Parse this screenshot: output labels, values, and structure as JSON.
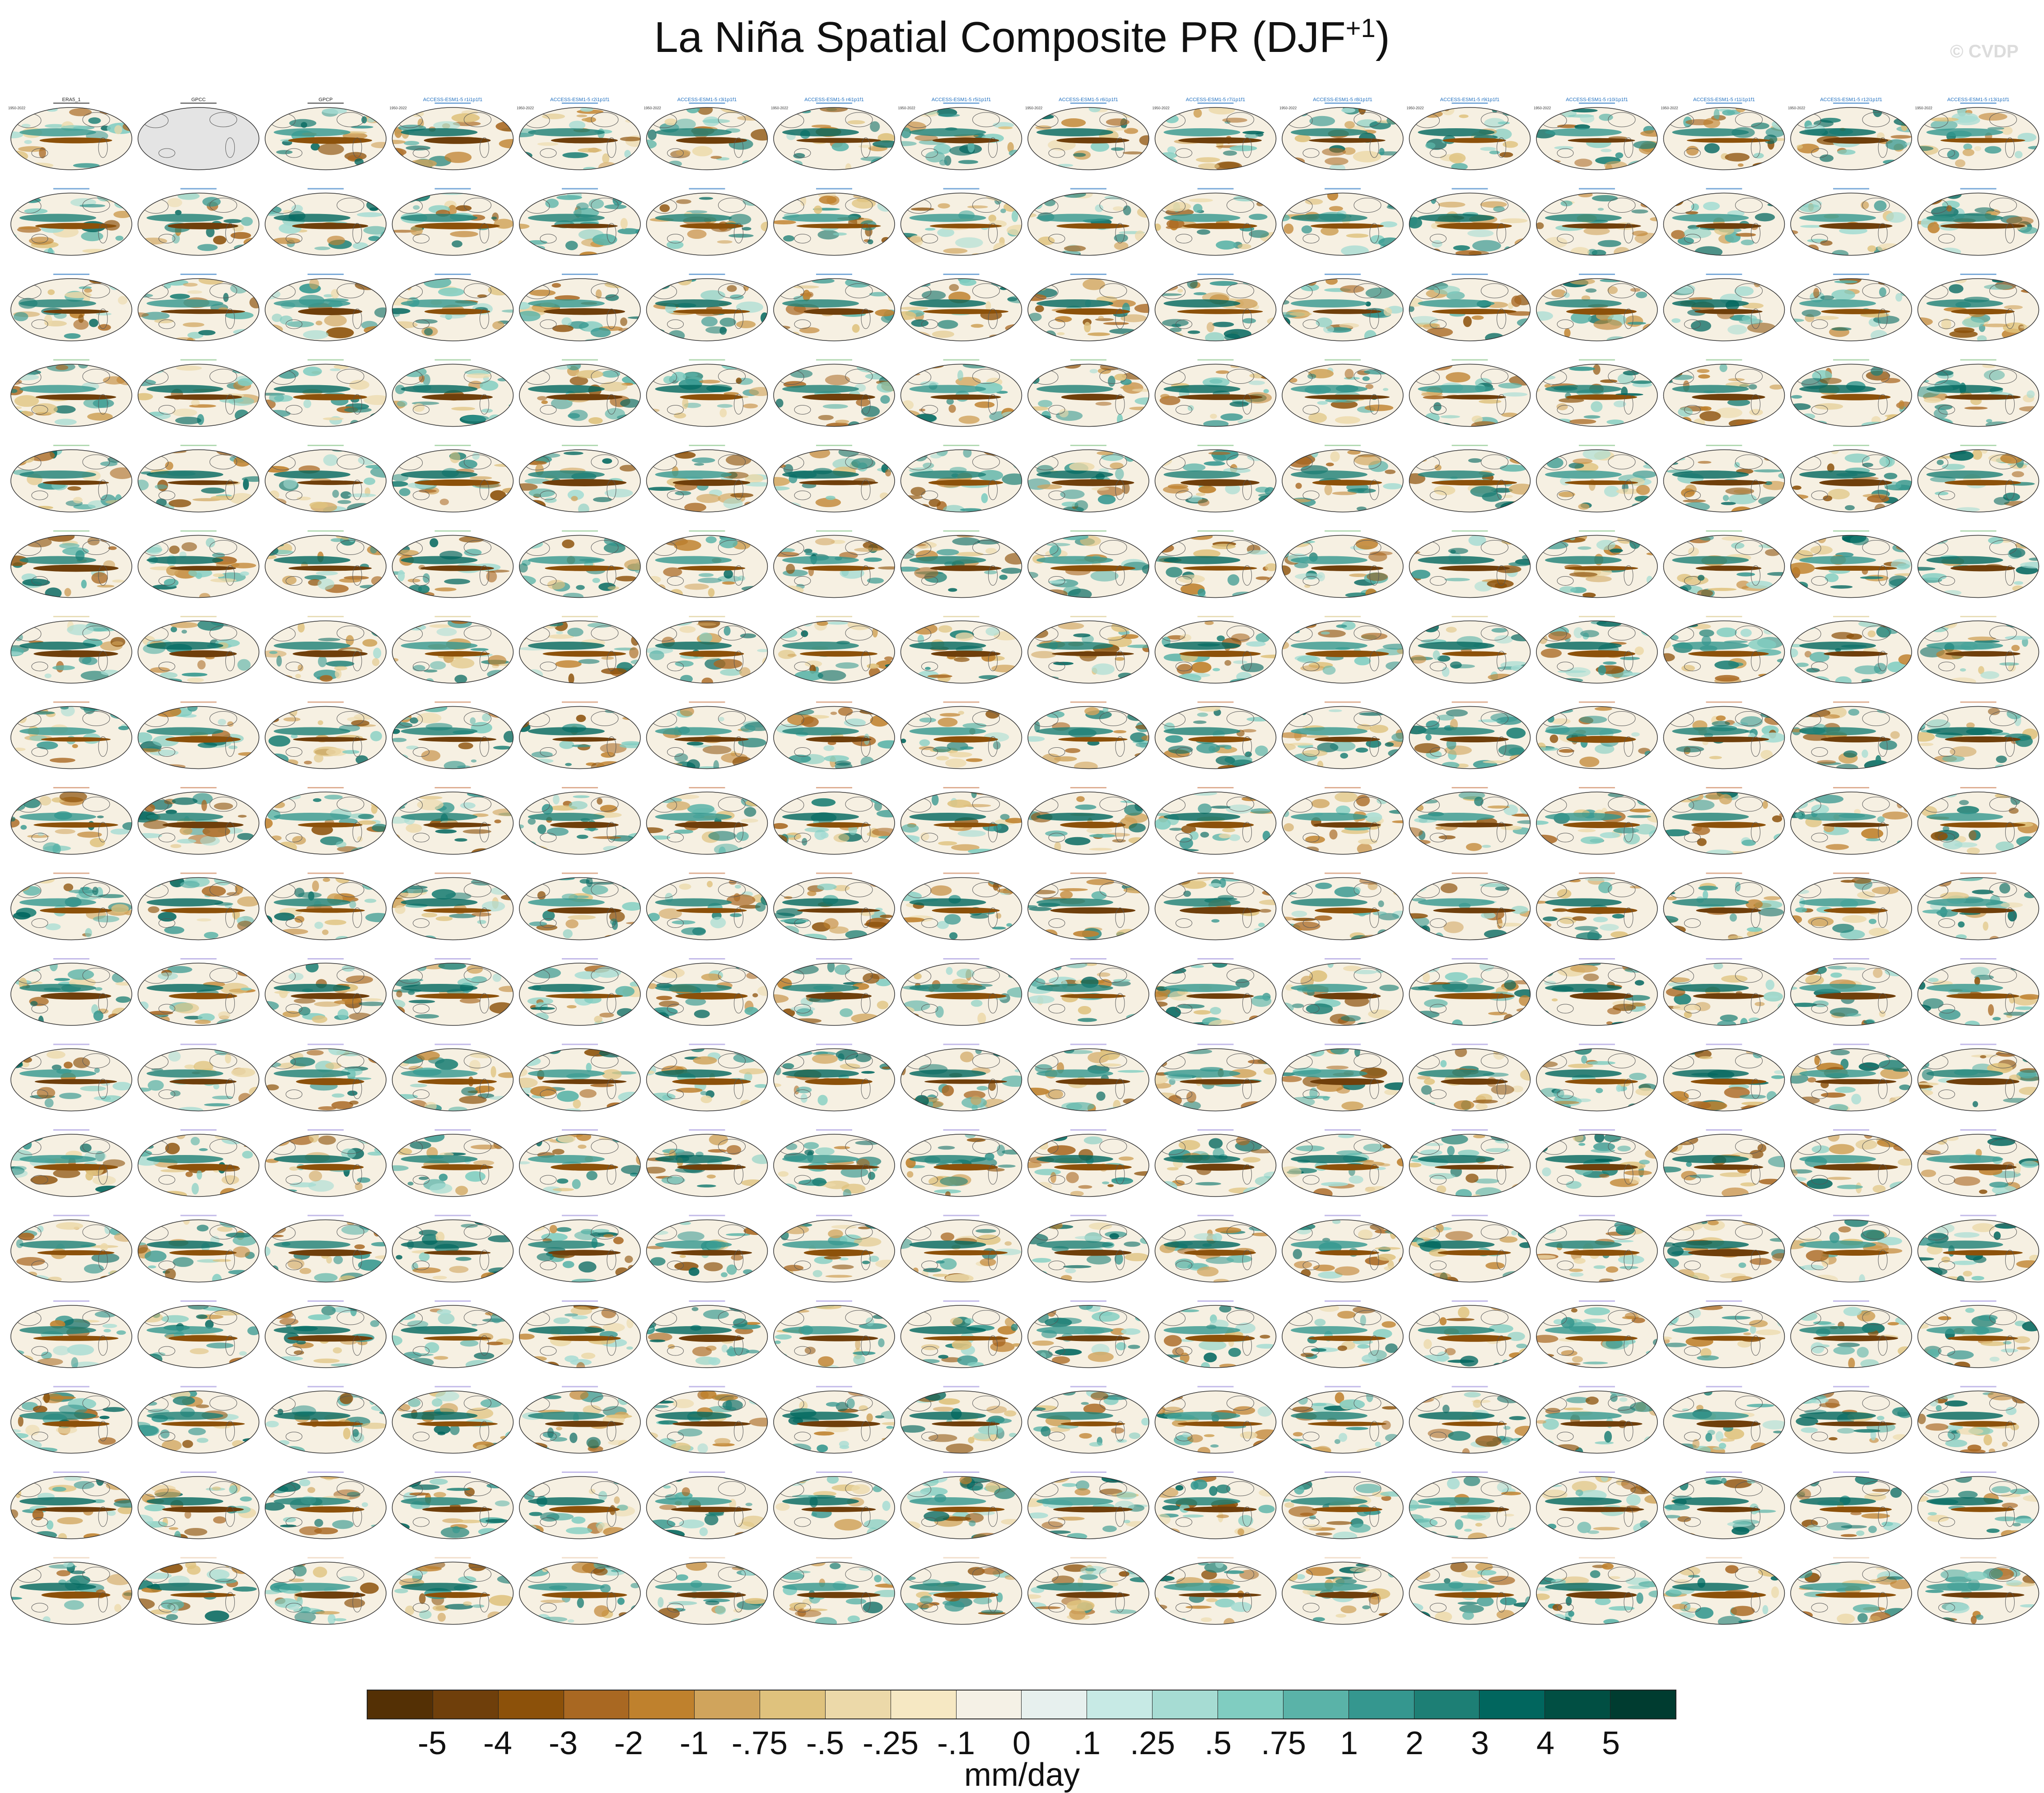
{
  "title": "La Niña Spatial Composite PR (DJF",
  "title_sup": "+1",
  "title_close": ")",
  "watermark": "© CVDP",
  "chart_data": {
    "type": "heatmap",
    "description_map_type": "spatial composite map grid",
    "grid_rows": 18,
    "grid_cols": 16,
    "panels": [
      {
        "title": "ERA5_1",
        "color": "#222222",
        "left": "1950-2022",
        "right": ""
      },
      {
        "title": "GPCC",
        "color": "#222222",
        "left": "",
        "right": ""
      },
      {
        "title": "GPCP",
        "color": "#222222",
        "left": "",
        "right": ""
      },
      {
        "title": "ACCESS-ESM1-5 r1i1p1f1",
        "color": "#1f6fbf",
        "left": "1950-2022",
        "right": ""
      },
      {
        "title": "ACCESS-ESM1-5 r2i1p1f1",
        "color": "#1f6fbf",
        "left": "1950-2022",
        "right": ""
      },
      {
        "title": "ACCESS-ESM1-5 r3i1p1f1",
        "color": "#1f6fbf",
        "left": "1950-2022",
        "right": ""
      },
      {
        "title": "ACCESS-ESM1-5 r4i1p1f1",
        "color": "#1f6fbf",
        "left": "1950-2022",
        "right": ""
      },
      {
        "title": "ACCESS-ESM1-5 r5i1p1f1",
        "color": "#1f6fbf",
        "left": "1950-2022",
        "right": ""
      },
      {
        "title": "ACCESS-ESM1-5 r6i1p1f1",
        "color": "#1f6fbf",
        "left": "1950-2022",
        "right": ""
      },
      {
        "title": "ACCESS-ESM1-5 r7i1p1f1",
        "color": "#1f6fbf",
        "left": "1950-2022",
        "right": ""
      },
      {
        "title": "ACCESS-ESM1-5 r8i1p1f1",
        "color": "#1f6fbf",
        "left": "1950-2022",
        "right": ""
      },
      {
        "title": "ACCESS-ESM1-5 r9i1p1f1",
        "color": "#1f6fbf",
        "left": "1950-2022",
        "right": ""
      },
      {
        "title": "ACCESS-ESM1-5 r10i1p1f1",
        "color": "#1f6fbf",
        "left": "1950-2022",
        "right": ""
      },
      {
        "title": "ACCESS-ESM1-5 r11i1p1f1",
        "color": "#1f6fbf",
        "left": "1950-2022",
        "right": ""
      },
      {
        "title": "ACCESS-ESM1-5 r12i1p1f1",
        "color": "#1f6fbf",
        "left": "1950-2022",
        "right": ""
      },
      {
        "title": "ACCESS-ESM1-5 r13i1p1f1",
        "color": "#1f6fbf",
        "left": "1950-2022",
        "right": ""
      }
    ],
    "row_label_color_sequence": [
      "#1f6fbf",
      "#1f6fbf",
      "#1f6fbf",
      "#7fbf7f",
      "#7fbf7f",
      "#7fbf7f",
      "#d8c888",
      "#c8784a",
      "#c8784a",
      "#c8784a",
      "#9a8ad8",
      "#9a8ad8",
      "#9a8ad8",
      "#9a8ad8",
      "#9a8ad8",
      "#9a8ad8",
      "#9a8ad8",
      "#e8c8a8"
    ],
    "colorbar": {
      "units": "mm/day",
      "tick_labels": [
        "-5",
        "-4",
        "-3",
        "-2",
        "-1",
        "-.75",
        "-.5",
        "-.25",
        "-.1",
        "0",
        ".1",
        ".25",
        ".5",
        ".75",
        "1",
        "2",
        "3",
        "4",
        "5"
      ],
      "colors": [
        "#543005",
        "#6f3f0b",
        "#8c510a",
        "#a96822",
        "#bf812d",
        "#d0a45c",
        "#dfc27d",
        "#ecd9a9",
        "#f6e8c3",
        "#f5f1e6",
        "#e7f0ee",
        "#c7eae5",
        "#a6dcd3",
        "#80cdc1",
        "#5ab3a8",
        "#35978f",
        "#1d7f75",
        "#01665e",
        "#014f43",
        "#003c30"
      ]
    },
    "legend_placement": "bottom"
  }
}
